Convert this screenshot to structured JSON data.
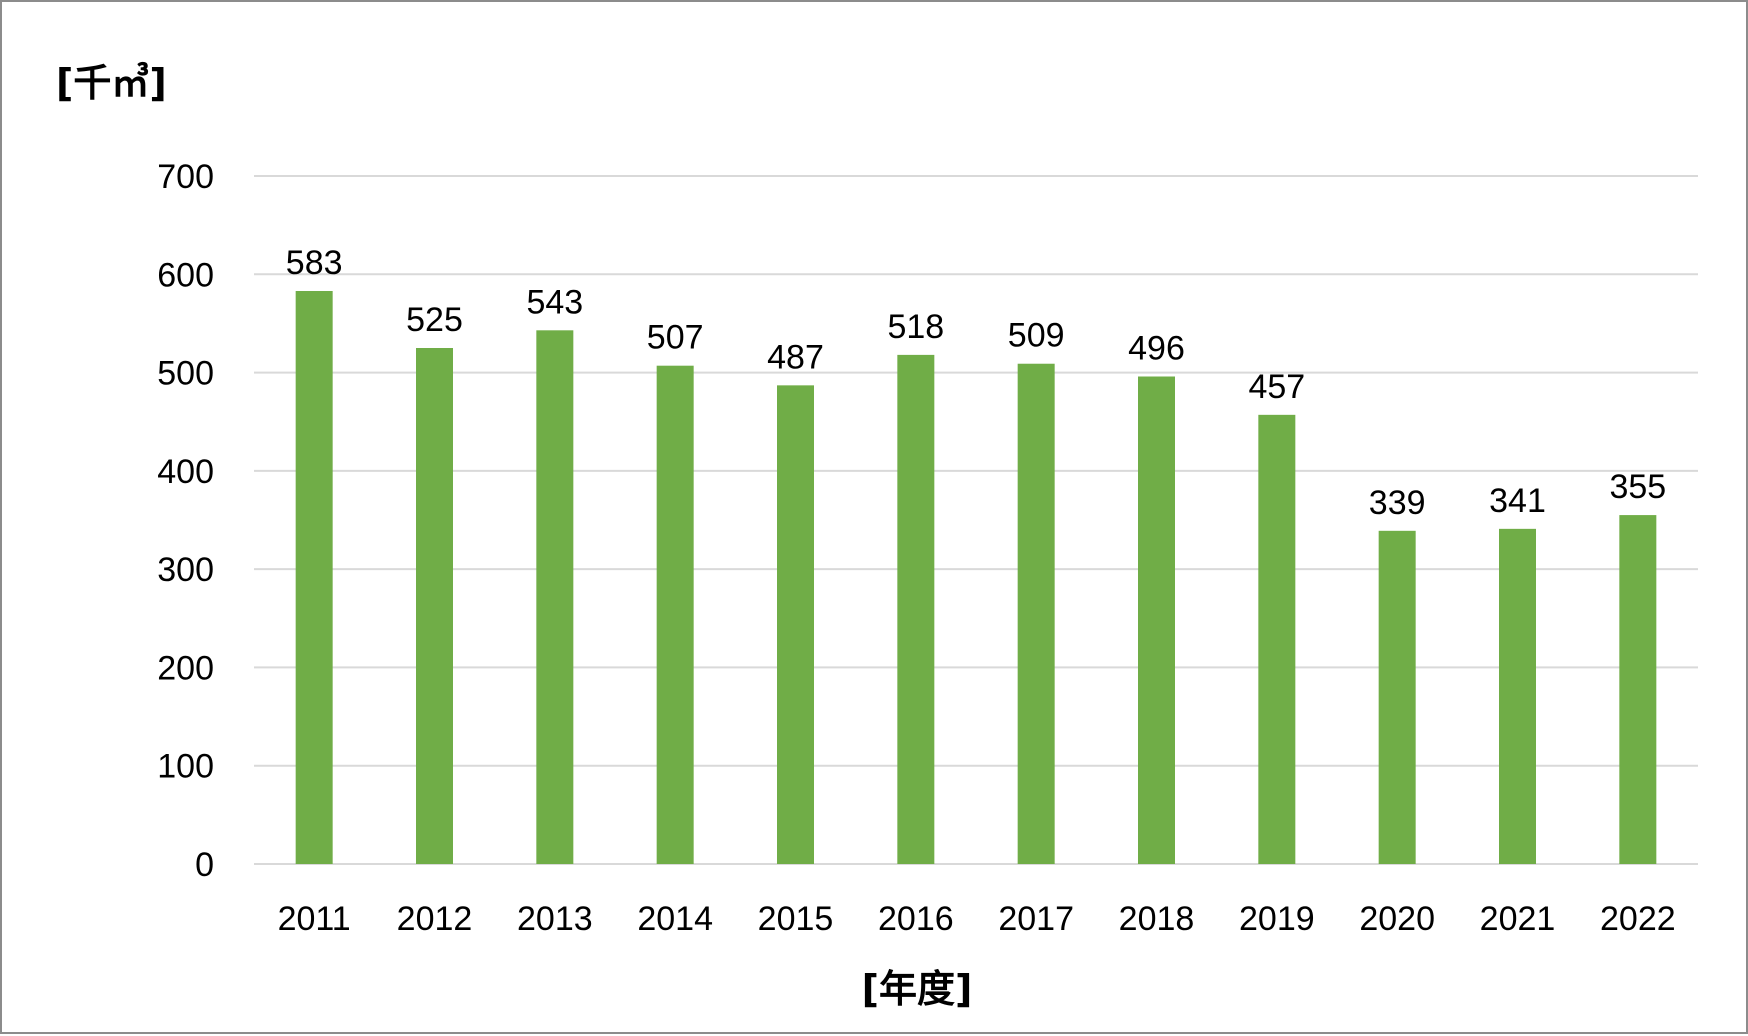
{
  "chart_data": {
    "type": "bar",
    "categories": [
      "2011",
      "2012",
      "2013",
      "2014",
      "2015",
      "2016",
      "2017",
      "2018",
      "2019",
      "2020",
      "2021",
      "2022"
    ],
    "values": [
      583,
      525,
      543,
      507,
      487,
      518,
      509,
      496,
      457,
      339,
      341,
      355
    ],
    "data_labels": [
      "583",
      "525",
      "543",
      "507",
      "487",
      "518",
      "509",
      "496",
      "457",
      "339",
      "341",
      "355"
    ],
    "ylabel": "[千㎥]",
    "xlabel": "[年度]",
    "ylim": [
      0,
      700
    ],
    "yticks": [
      0,
      100,
      200,
      300,
      400,
      500,
      600,
      700
    ],
    "grid": true,
    "legend": "none",
    "bar_color": "#70ad47",
    "grid_color": "#d9d9d9"
  }
}
